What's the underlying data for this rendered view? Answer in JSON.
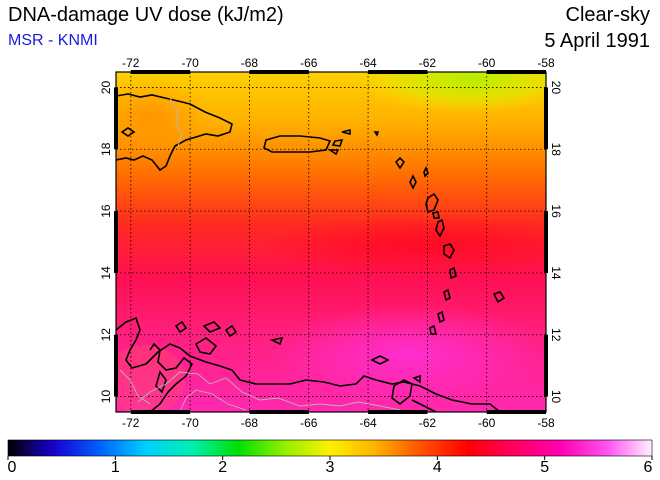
{
  "header": {
    "title": "DNA-damage UV dose (kJ/m2)",
    "source": "MSR - KNMI",
    "condition": "Clear-sky",
    "date": "5 April 1991"
  },
  "colors": {
    "source_text": "#1a1adc"
  },
  "map": {
    "lon_range": [
      -72.5,
      -58
    ],
    "lat_range": [
      9.5,
      20.5
    ],
    "lon_ticks": [
      "-72",
      "-70",
      "-68",
      "-66",
      "-64",
      "-62",
      "-60",
      "-58"
    ],
    "lat_ticks": [
      "20",
      "18",
      "16",
      "14",
      "12",
      "10"
    ],
    "gridlines": true,
    "coastlines": "black",
    "borders": "gray"
  },
  "colorbar": {
    "min": 0,
    "max": 6,
    "labels": [
      "0",
      "1",
      "2",
      "3",
      "4",
      "5",
      "6"
    ],
    "stops": [
      "#000000",
      "#1a00d0",
      "#0060ff",
      "#00d0ff",
      "#00f0b0",
      "#00e000",
      "#90f000",
      "#fff000",
      "#ffb000",
      "#ff5000",
      "#ff0000",
      "#ff0060",
      "#ff00b0",
      "#ff50f0",
      "#fff0ff"
    ]
  }
}
